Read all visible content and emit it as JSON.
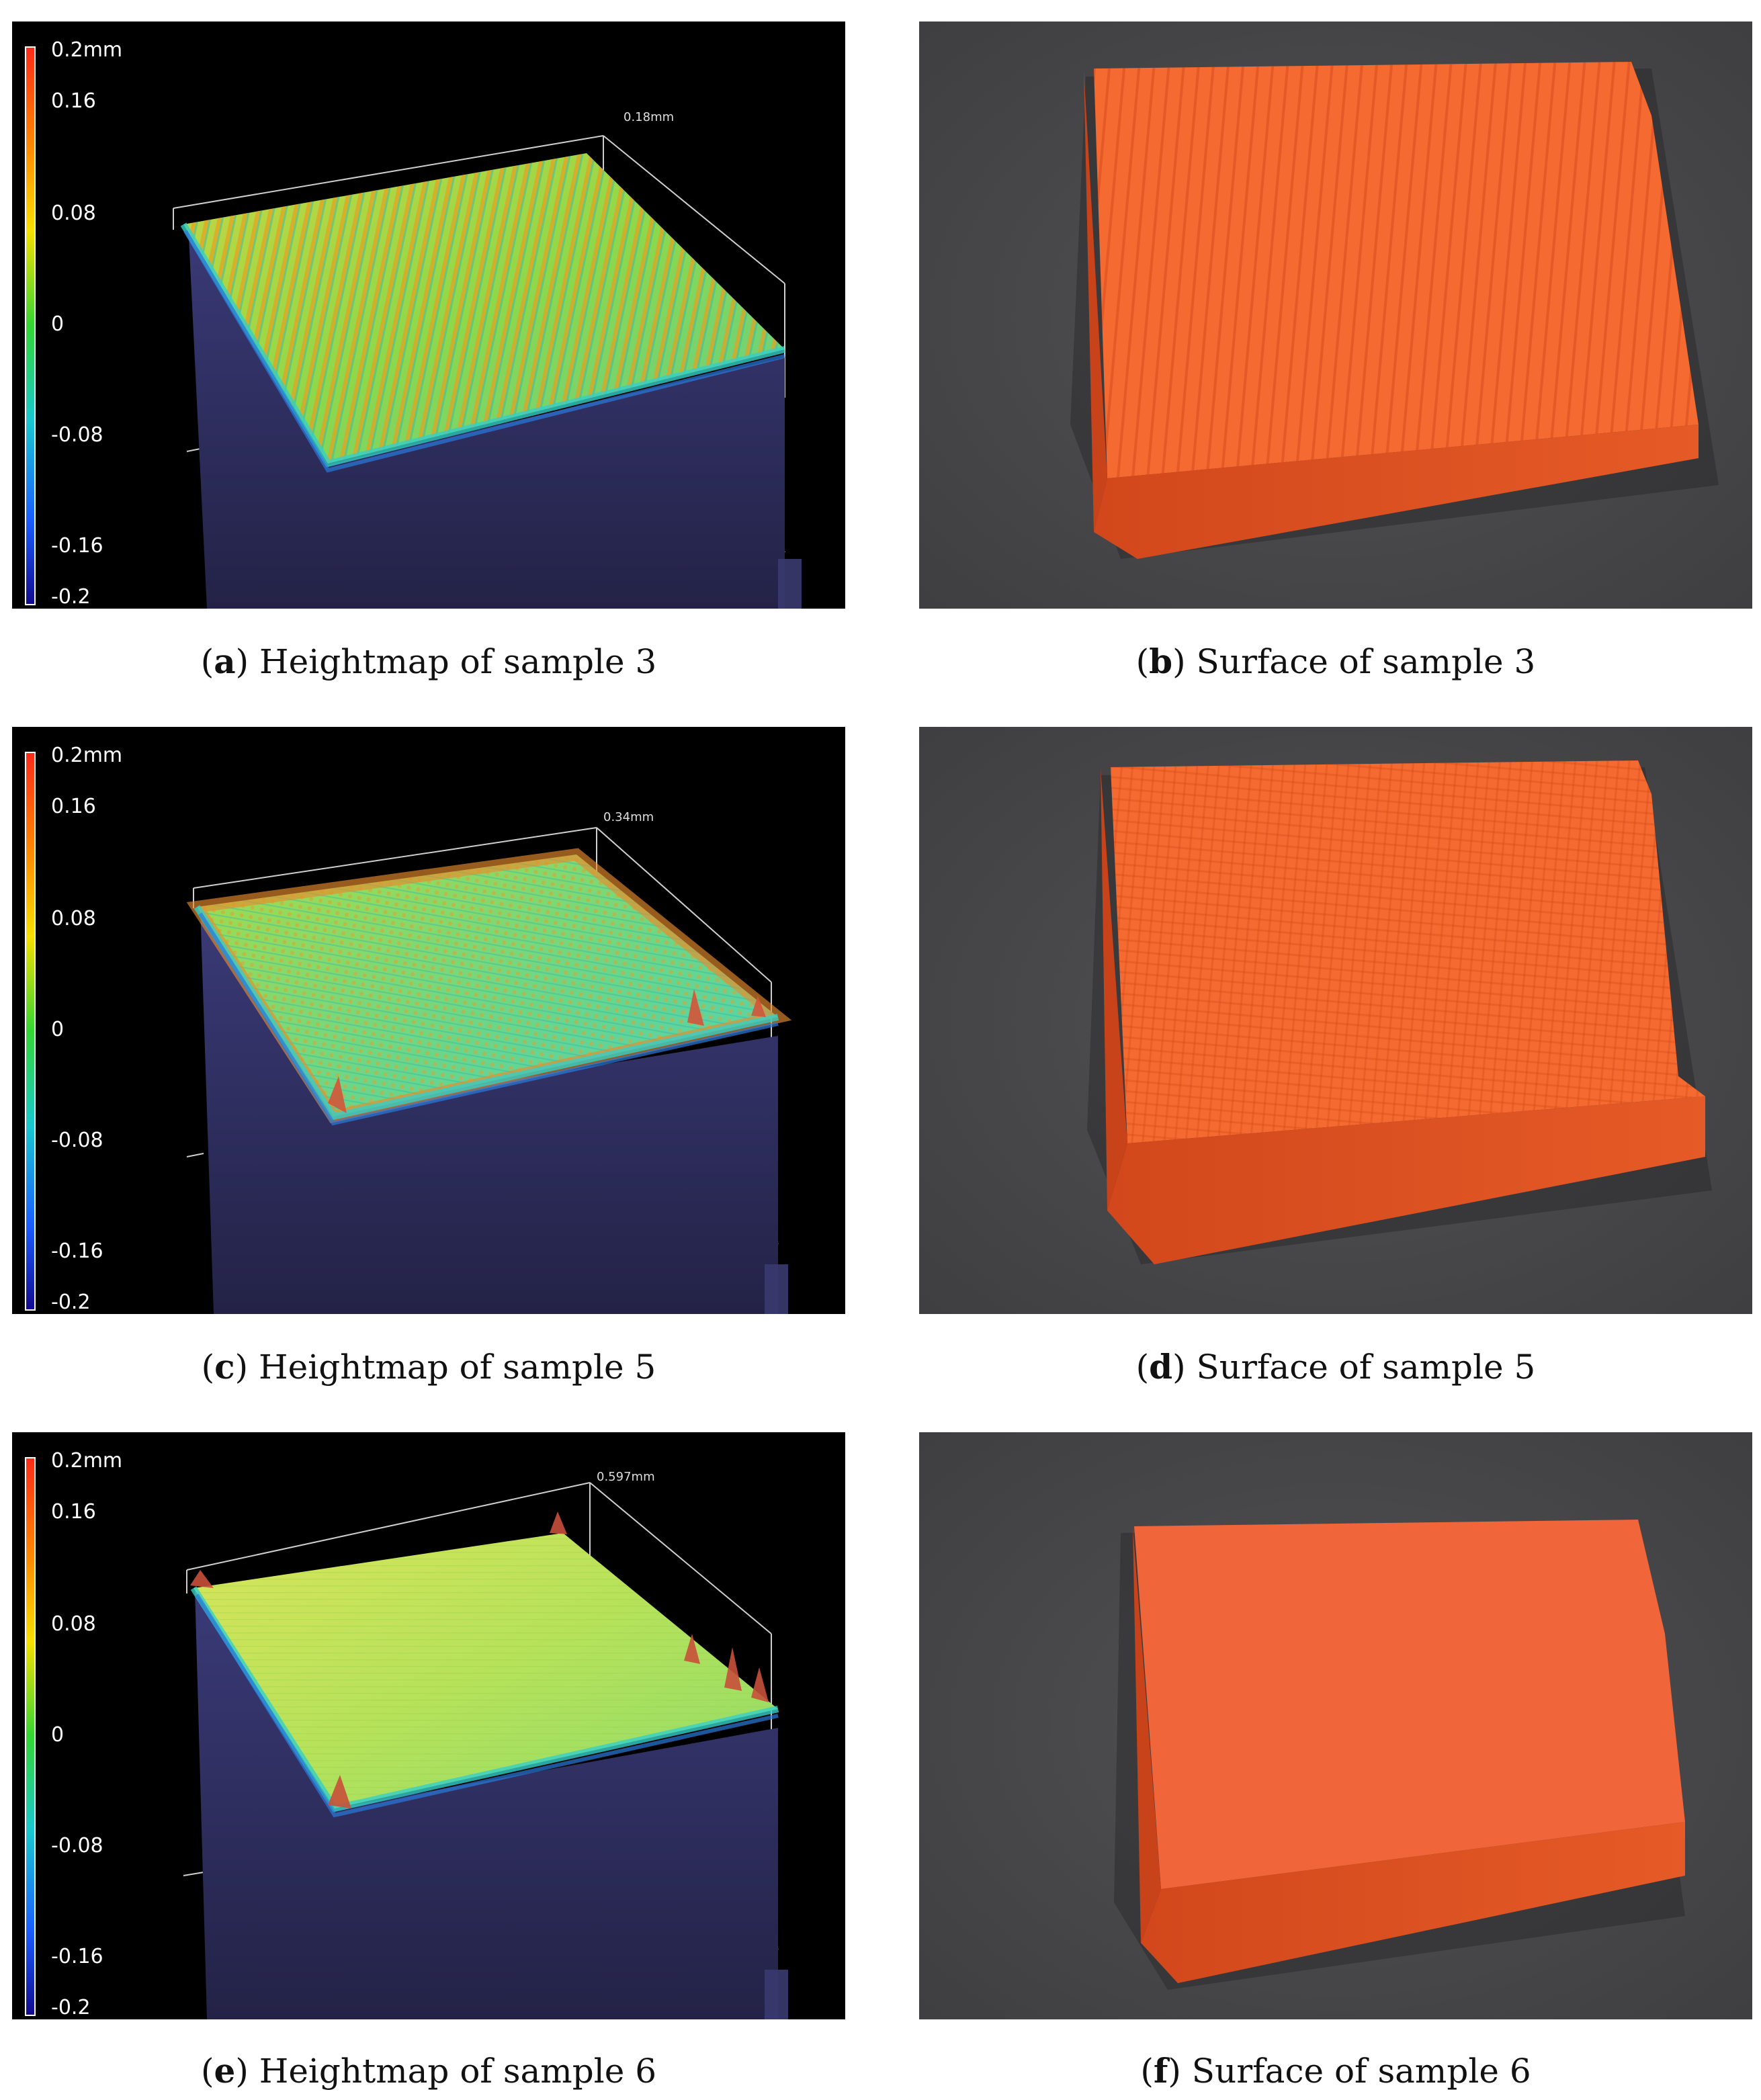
{
  "figure": {
    "panels": [
      {
        "letter": "a",
        "caption": "Heightmap of sample 3",
        "kind": "heightmap",
        "scale_labels": [
          "0.2mm",
          "0.16",
          "0.08",
          "0",
          "-0.08",
          "-0.16",
          "-0.2"
        ],
        "axis_label": "0.18mm",
        "surface": "ridges"
      },
      {
        "letter": "b",
        "caption": "Surface of sample 3",
        "kind": "photo",
        "surface": "ridges"
      },
      {
        "letter": "c",
        "caption": "Heightmap of sample 5",
        "kind": "heightmap",
        "scale_labels": [
          "0.2mm",
          "0.16",
          "0.08",
          "0",
          "-0.08",
          "-0.16",
          "-0.2"
        ],
        "axis_label": "0.34mm",
        "surface": "grid"
      },
      {
        "letter": "d",
        "caption": "Surface of sample 5",
        "kind": "photo",
        "surface": "grid"
      },
      {
        "letter": "e",
        "caption": "Heightmap of sample 6",
        "kind": "heightmap",
        "scale_labels": [
          "0.2mm",
          "0.16",
          "0.08",
          "0",
          "-0.08",
          "-0.16",
          "-0.2"
        ],
        "axis_label": "0.597mm",
        "surface": "smooth"
      },
      {
        "letter": "f",
        "caption": "Surface of sample 6",
        "kind": "photo",
        "surface": "smooth"
      }
    ],
    "colors": {
      "colorbar": [
        "#ff2a1a",
        "#ff8a00",
        "#f7e000",
        "#33d633",
        "#19c8d0",
        "#1a5cff",
        "#120a8c"
      ],
      "heightmap_body": "#2c2a58",
      "photo_background": "#4a4a4c",
      "specimen_orange": "#f25a28"
    }
  }
}
